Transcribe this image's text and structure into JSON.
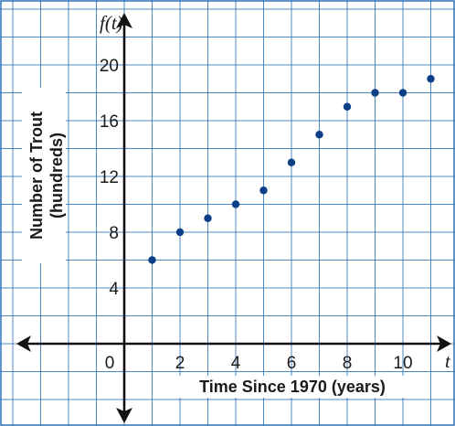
{
  "chart_data": {
    "type": "scatter",
    "title": "",
    "xlabel": "Time Since 1970 (years)",
    "ylabel": "Number of Trout",
    "ylabel_units": "(hundreds)",
    "x_axis_var": "t",
    "y_axis_var": "f(t)",
    "xlim": [
      -4,
      12
    ],
    "ylim": [
      -3,
      23
    ],
    "x_ticks": [
      0,
      2,
      4,
      6,
      8,
      10
    ],
    "x_tick_labels": [
      "0",
      "2",
      "4",
      "6",
      "8",
      "10"
    ],
    "y_ticks": [
      4,
      8,
      12,
      16,
      20
    ],
    "y_tick_labels": [
      "4",
      "8",
      "12",
      "16",
      "20"
    ],
    "grid": true,
    "series": [
      {
        "x": [
          1,
          2,
          3,
          4,
          5,
          6,
          7,
          8,
          9,
          10,
          11
        ],
        "y": [
          6,
          8,
          9,
          10,
          11,
          13,
          15,
          17,
          18,
          18,
          19
        ]
      }
    ],
    "colors": {
      "grid": "#2f73b5",
      "points": "#0b3f86",
      "axes": "#111111"
    }
  }
}
